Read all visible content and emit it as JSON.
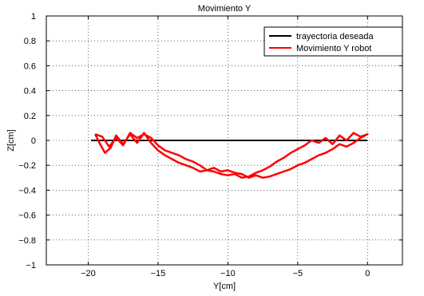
{
  "chart_data": {
    "type": "line",
    "title": "Movimiento Y",
    "xlabel": "Y[cm]",
    "ylabel": "Z[cm]",
    "xlim": [
      -23,
      2.5
    ],
    "ylim": [
      -1,
      1
    ],
    "xticks": [
      -20,
      -15,
      -10,
      -5,
      0
    ],
    "xtick_labels": [
      "−20",
      "−15",
      "−10",
      "−5",
      "0"
    ],
    "yticks": [
      1,
      0.8,
      0.6,
      0.4,
      0.2,
      0,
      -0.2,
      -0.4,
      -0.6,
      -0.8,
      -1
    ],
    "ytick_labels": [
      "1",
      "0.8",
      "0.6",
      "0.4",
      "0.2",
      "0",
      "−0.2",
      "−0.4",
      "−0.6",
      "−0.8",
      "−1"
    ],
    "grid": true,
    "legend_position": "top-right",
    "series": [
      {
        "name": "trayectoria deseada",
        "color": "#000000",
        "x": [
          -19.8,
          0
        ],
        "y": [
          0,
          0
        ]
      },
      {
        "name": "Movimiento Y robot",
        "color": "#ff0000",
        "x": [
          -19.5,
          -19.2,
          -18.8,
          -18.4,
          -18.0,
          -17.5,
          -17.0,
          -16.5,
          -16.0,
          -15.5,
          -15.0,
          -14.5,
          -14.0,
          -13.5,
          -13.0,
          -12.5,
          -12.0,
          -11.5,
          -11.0,
          -10.5,
          -10.0,
          -9.5,
          -9.0,
          -8.5,
          -8.0,
          -7.5,
          -7.0,
          -6.5,
          -6.0,
          -5.5,
          -5.0,
          -4.5,
          -4.0,
          -3.5,
          -3.0,
          -2.5,
          -2.0,
          -1.5,
          -1.0,
          -0.5,
          0.0,
          -0.5,
          -1.0,
          -1.5,
          -2.0,
          -2.5,
          -3.0,
          -3.5,
          -4.0,
          -4.5,
          -5.0,
          -5.5,
          -6.0,
          -6.5,
          -7.0,
          -7.5,
          -8.0,
          -8.5,
          -9.0,
          -9.5,
          -10.0,
          -10.5,
          -11.0,
          -11.5,
          -12.0,
          -12.5,
          -13.0,
          -13.5,
          -14.0,
          -14.5,
          -15.0,
          -15.5,
          -16.0,
          -16.5,
          -17.0,
          -17.5,
          -18.0,
          -18.5,
          -19.0,
          -19.5
        ],
        "y": [
          0.05,
          -0.02,
          -0.1,
          -0.06,
          0.04,
          -0.03,
          0.05,
          -0.02,
          0.06,
          -0.02,
          -0.08,
          -0.12,
          -0.15,
          -0.18,
          -0.2,
          -0.22,
          -0.25,
          -0.24,
          -0.25,
          -0.27,
          -0.28,
          -0.27,
          -0.3,
          -0.29,
          -0.26,
          -0.24,
          -0.21,
          -0.17,
          -0.14,
          -0.1,
          -0.07,
          -0.04,
          0.0,
          -0.02,
          0.02,
          -0.03,
          0.04,
          0.0,
          0.06,
          0.03,
          0.05,
          0.02,
          -0.02,
          -0.05,
          -0.03,
          -0.07,
          -0.1,
          -0.12,
          -0.15,
          -0.18,
          -0.2,
          -0.23,
          -0.25,
          -0.27,
          -0.29,
          -0.3,
          -0.28,
          -0.3,
          -0.27,
          -0.26,
          -0.24,
          -0.25,
          -0.22,
          -0.24,
          -0.2,
          -0.17,
          -0.15,
          -0.12,
          -0.1,
          -0.08,
          -0.04,
          0.02,
          0.05,
          0.02,
          0.06,
          -0.04,
          0.02,
          -0.05,
          0.03,
          0.05
        ]
      }
    ],
    "annotations": []
  }
}
